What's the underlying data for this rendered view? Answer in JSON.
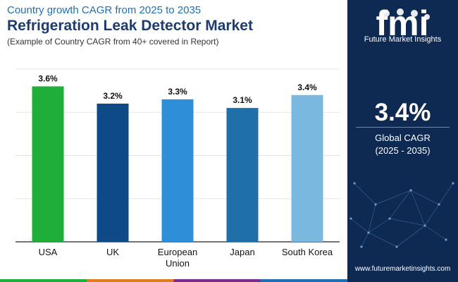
{
  "header": {
    "subtitle": "Country growth CAGR from 2025 to 2035",
    "title": "Refrigeration Leak Detector Market",
    "note": "(Example of Country CAGR from 40+ covered in Report)"
  },
  "chart_data": {
    "type": "bar",
    "categories": [
      "USA",
      "UK",
      "European Union",
      "Japan",
      "South Korea"
    ],
    "values": [
      3.6,
      3.2,
      3.3,
      3.1,
      3.4
    ],
    "value_labels": [
      "3.6%",
      "3.2%",
      "3.3%",
      "3.1%",
      "3.4%"
    ],
    "colors": [
      "#1fae3a",
      "#0e4a86",
      "#2e8fd8",
      "#1f6fa8",
      "#7ab8e0"
    ],
    "ylim": [
      0,
      4
    ],
    "grid": true,
    "legend": "none"
  },
  "sidebar": {
    "logo_text": "fmi",
    "brand": "Future Market Insights",
    "cagr_value": "3.4%",
    "cagr_label": "Global CAGR",
    "cagr_period": "(2025 - 2035)",
    "website": "www.futuremarketinsights.com",
    "background": "#0e2a52"
  },
  "footer": {
    "colors": [
      "#1fae3a",
      "#e07b1f",
      "#7b2d8e",
      "#1f6fb5"
    ]
  }
}
